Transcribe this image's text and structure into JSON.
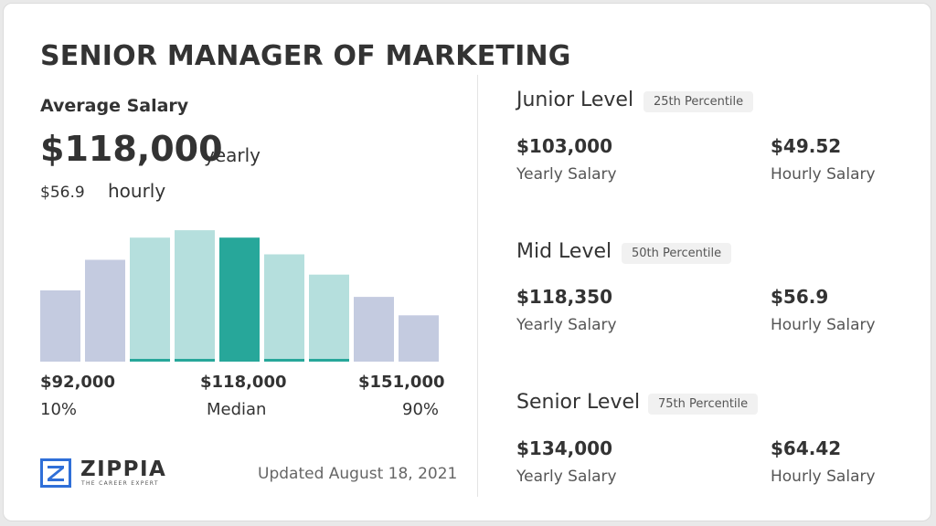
{
  "title": "SENIOR MANAGER OF MARKETING",
  "average": {
    "label": "Average Salary",
    "yearly_value": "$118,000",
    "yearly_label": "yearly",
    "hourly_value": "$56.9",
    "hourly_label": "hourly"
  },
  "chart_data": {
    "type": "bar",
    "title": "",
    "xlabel": "",
    "ylabel": "",
    "values": [
      77,
      110,
      134,
      142,
      134,
      116,
      94,
      70,
      50
    ],
    "highlight_index": 4,
    "underline_indices": [
      2,
      3,
      5,
      6
    ],
    "ylim": [
      0,
      150
    ],
    "colors": {
      "outer": "#c4cbe0",
      "inner": "#b5dfdd",
      "median": "#27a79a",
      "underline": "#27a79a"
    },
    "axis_labels": {
      "low_value": "$92,000",
      "low_pct": "10%",
      "median_value": "$118,000",
      "median_pct": "Median",
      "high_value": "$151,000",
      "high_pct": "90%"
    }
  },
  "levels": [
    {
      "name": "Junior Level",
      "percentile": "25th Percentile",
      "yearly": "$103,000",
      "yearly_label": "Yearly Salary",
      "hourly": "$49.52",
      "hourly_label": "Hourly Salary"
    },
    {
      "name": "Mid Level",
      "percentile": "50th Percentile",
      "yearly": "$118,350",
      "yearly_label": "Yearly Salary",
      "hourly": "$56.9",
      "hourly_label": "Hourly Salary"
    },
    {
      "name": "Senior Level",
      "percentile": "75th Percentile",
      "yearly": "$134,000",
      "yearly_label": "Yearly Salary",
      "hourly": "$64.42",
      "hourly_label": "Hourly Salary"
    }
  ],
  "footer": {
    "logo_text": "ZIPPIA",
    "logo_tagline": "THE CAREER EXPERT",
    "logo_icon": "zippia-z-icon",
    "logo_color": "#2f6fd8",
    "updated": "Updated August 18, 2021"
  }
}
